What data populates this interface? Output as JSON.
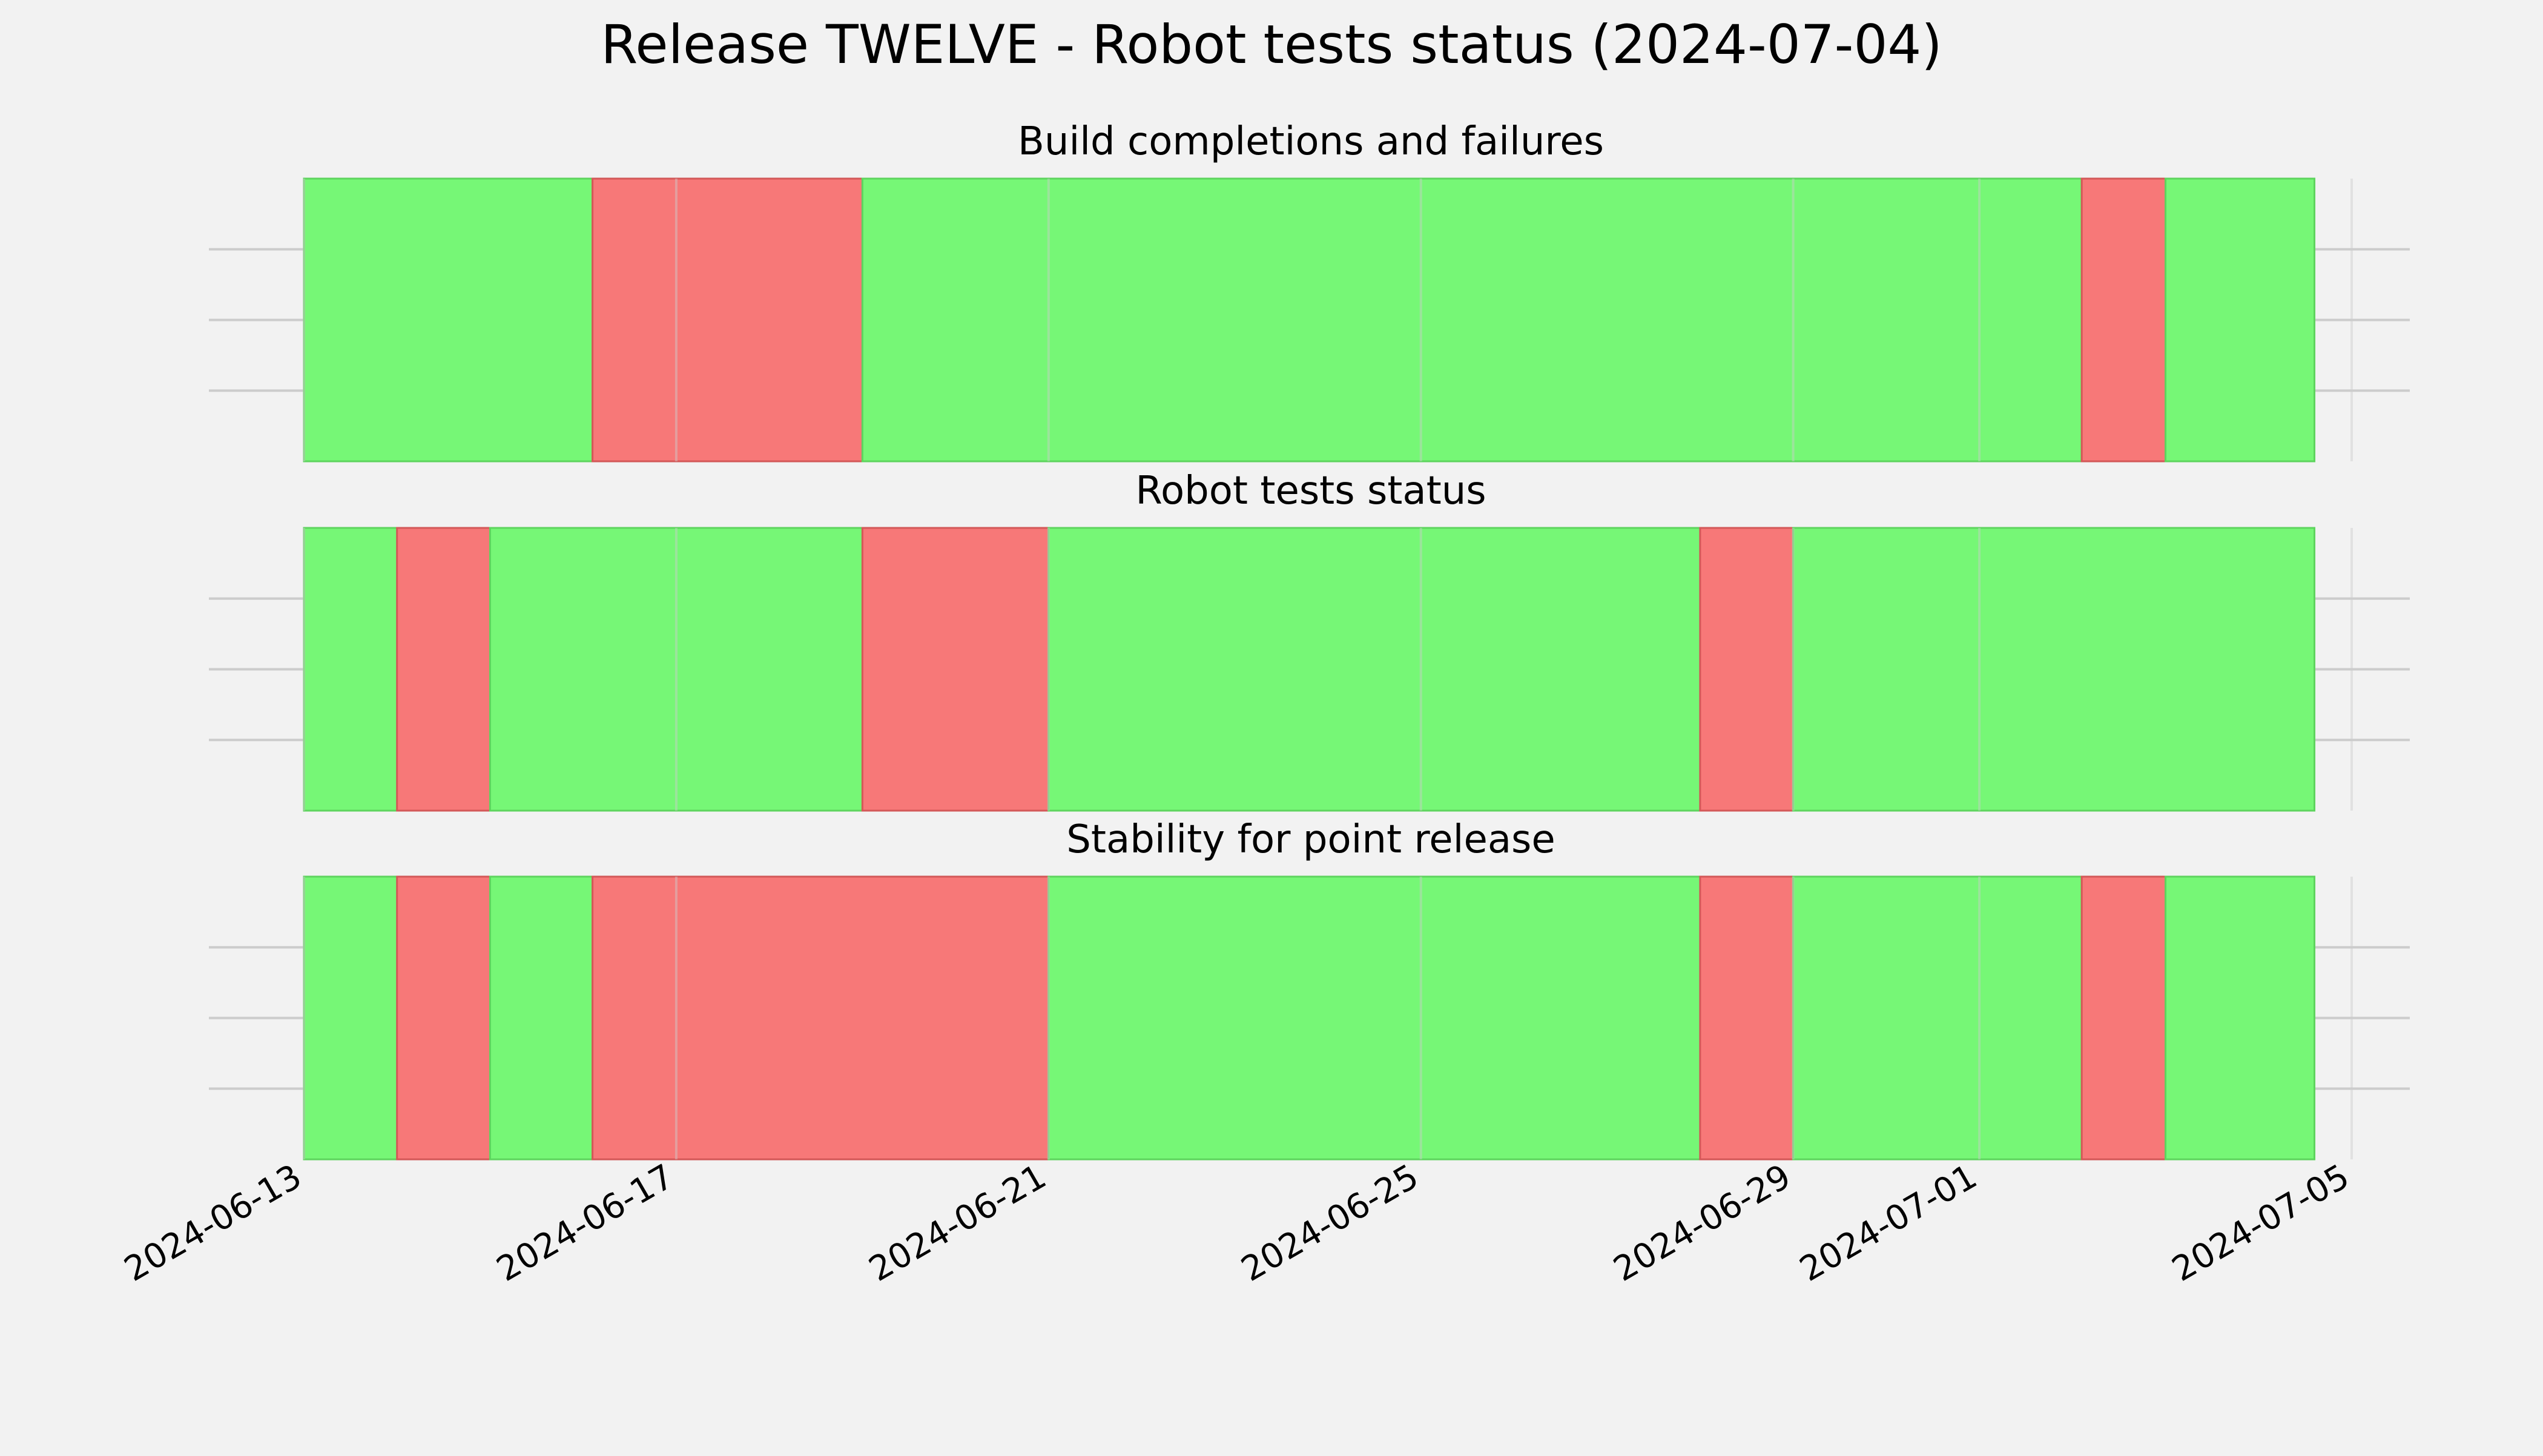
{
  "chart_data": {
    "type": "status-timeline",
    "title": "Release TWELVE - Robot tests status (2024-07-04)",
    "xlabel": "",
    "ylabel": "",
    "x_axis": {
      "type": "date",
      "range": [
        "2024-06-13",
        "2024-07-05"
      ],
      "ticks": [
        "2024-06-13",
        "2024-06-17",
        "2024-06-21",
        "2024-06-25",
        "2024-06-29",
        "2024-07-01",
        "2024-07-05"
      ],
      "tick_rotation_deg": 30
    },
    "grid": true,
    "colors": {
      "pass": "#76f776",
      "fail": "#f77878",
      "background": "#f2f2f2",
      "grid": "#cccccc"
    },
    "panels": [
      {
        "title": "Build completions and failures",
        "segments": [
          {
            "start": "2024-06-13",
            "end": "2024-06-16.1",
            "status": "pass"
          },
          {
            "start": "2024-06-16.1",
            "end": "2024-06-19",
            "status": "fail"
          },
          {
            "start": "2024-06-19",
            "end": "2024-07-02.1",
            "status": "pass"
          },
          {
            "start": "2024-07-02.1",
            "end": "2024-07-03",
            "status": "fail"
          },
          {
            "start": "2024-07-03",
            "end": "2024-07-04.6",
            "status": "pass"
          }
        ]
      },
      {
        "title": "Robot tests status",
        "segments": [
          {
            "start": "2024-06-13",
            "end": "2024-06-14",
            "status": "pass"
          },
          {
            "start": "2024-06-14",
            "end": "2024-06-15",
            "status": "fail"
          },
          {
            "start": "2024-06-15",
            "end": "2024-06-19",
            "status": "pass"
          },
          {
            "start": "2024-06-19",
            "end": "2024-06-21",
            "status": "fail"
          },
          {
            "start": "2024-06-21",
            "end": "2024-06-28",
            "status": "pass"
          },
          {
            "start": "2024-06-28",
            "end": "2024-06-29",
            "status": "fail"
          },
          {
            "start": "2024-06-29",
            "end": "2024-07-04.6",
            "status": "pass"
          }
        ]
      },
      {
        "title": "Stability for point release",
        "segments": [
          {
            "start": "2024-06-13",
            "end": "2024-06-14",
            "status": "pass"
          },
          {
            "start": "2024-06-14",
            "end": "2024-06-15",
            "status": "fail"
          },
          {
            "start": "2024-06-15",
            "end": "2024-06-16.1",
            "status": "pass"
          },
          {
            "start": "2024-06-16.1",
            "end": "2024-06-21",
            "status": "fail"
          },
          {
            "start": "2024-06-21",
            "end": "2024-06-28",
            "status": "pass"
          },
          {
            "start": "2024-06-28",
            "end": "2024-06-29",
            "status": "fail"
          },
          {
            "start": "2024-06-29",
            "end": "2024-07-02.1",
            "status": "pass"
          },
          {
            "start": "2024-07-02.1",
            "end": "2024-07-03",
            "status": "fail"
          },
          {
            "start": "2024-07-03",
            "end": "2024-07-04.6",
            "status": "pass"
          }
        ]
      }
    ]
  }
}
